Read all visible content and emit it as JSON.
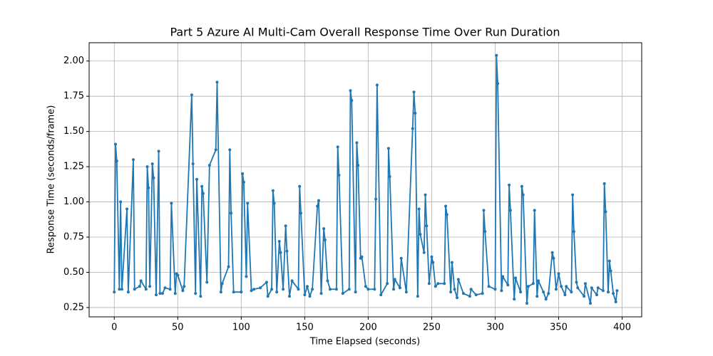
{
  "chart_data": {
    "type": "line",
    "title": "Part 5 Azure AI Multi-Cam Overall Response Time Over Run Duration",
    "xlabel": "Time Elapsed (seconds)",
    "ylabel": "Response Time (seconds/frame)",
    "color": "#1f77b4",
    "grid": true,
    "xlim": [
      -19.8,
      415.4
    ],
    "ylim": [
      0.184,
      2.13
    ],
    "xticks": [
      0,
      50,
      100,
      150,
      200,
      250,
      300,
      350,
      400
    ],
    "yticks": [
      0.25,
      {
        "value": 0.5,
        "label": "0.50"
      },
      0.75,
      {
        "value": 1.0,
        "label": "1.00"
      },
      1.25,
      {
        "value": 1.5,
        "label": "1.50"
      },
      1.75,
      {
        "value": 2.0,
        "label": "2.00"
      }
    ],
    "x": [
      0,
      1,
      2,
      4,
      5,
      6,
      10,
      11,
      15,
      16,
      20,
      21,
      25,
      26,
      27,
      28,
      30,
      31,
      33,
      35,
      36,
      38,
      40,
      44,
      45,
      48,
      49,
      50,
      54,
      55,
      61,
      62,
      64,
      65,
      68,
      69,
      70,
      73,
      75,
      80,
      81,
      84,
      85,
      90,
      91,
      92,
      94,
      100,
      101,
      102,
      104,
      105,
      108,
      110,
      115,
      120,
      121,
      124,
      125,
      126,
      128,
      130,
      131,
      133,
      135,
      136,
      138,
      140,
      145,
      146,
      147,
      150,
      152,
      154,
      156,
      160,
      161,
      163,
      165,
      166,
      168,
      170,
      175,
      176,
      177,
      180,
      185,
      186,
      187,
      190,
      191,
      192,
      194,
      195,
      198,
      200,
      205,
      206,
      207,
      210,
      215,
      216,
      217,
      220,
      221,
      225,
      226,
      230,
      235,
      236,
      237,
      239,
      240,
      241,
      244,
      245,
      246,
      248,
      250,
      251,
      253,
      255,
      260,
      261,
      262,
      265,
      266,
      268,
      270,
      271,
      275,
      280,
      281,
      285,
      290,
      291,
      292,
      295,
      300,
      301,
      302,
      305,
      306,
      310,
      311,
      312,
      315,
      316,
      320,
      321,
      322,
      325,
      326,
      330,
      331,
      333,
      334,
      338,
      340,
      342,
      345,
      346,
      348,
      350,
      352,
      355,
      356,
      360,
      361,
      362,
      364,
      365,
      370,
      371,
      375,
      376,
      380,
      381,
      385,
      386,
      387,
      389,
      390,
      391,
      393,
      395,
      396
    ],
    "values": [
      0.36,
      1.41,
      1.29,
      0.38,
      1.0,
      0.38,
      0.95,
      0.36,
      1.3,
      0.38,
      0.4,
      0.44,
      0.38,
      1.25,
      1.1,
      0.4,
      1.27,
      1.17,
      0.34,
      1.36,
      0.35,
      0.35,
      0.39,
      0.38,
      0.99,
      0.35,
      0.49,
      0.48,
      0.37,
      0.4,
      1.76,
      1.27,
      0.35,
      1.16,
      0.33,
      1.11,
      1.06,
      0.43,
      1.26,
      1.37,
      1.85,
      0.36,
      0.42,
      0.54,
      1.37,
      0.92,
      0.36,
      0.36,
      1.2,
      1.14,
      0.47,
      0.99,
      0.37,
      0.38,
      0.39,
      0.43,
      0.33,
      0.38,
      1.08,
      0.99,
      0.36,
      0.72,
      0.64,
      0.38,
      0.83,
      0.65,
      0.33,
      0.44,
      0.38,
      1.11,
      0.92,
      0.34,
      0.4,
      0.33,
      0.38,
      0.97,
      1.01,
      0.35,
      0.81,
      0.73,
      0.44,
      0.38,
      0.38,
      1.39,
      1.19,
      0.35,
      0.38,
      1.79,
      1.72,
      0.36,
      1.42,
      1.26,
      0.6,
      0.61,
      0.4,
      0.38,
      0.38,
      1.02,
      1.83,
      0.34,
      0.42,
      1.38,
      1.18,
      0.38,
      0.45,
      0.39,
      0.6,
      0.36,
      1.52,
      1.78,
      1.63,
      0.33,
      0.95,
      0.77,
      0.64,
      1.05,
      0.83,
      0.42,
      0.61,
      0.57,
      0.4,
      0.42,
      0.42,
      0.97,
      0.91,
      0.36,
      0.57,
      0.38,
      0.32,
      0.45,
      0.35,
      0.33,
      0.38,
      0.34,
      0.35,
      0.94,
      0.79,
      0.4,
      0.38,
      2.04,
      1.84,
      0.37,
      0.47,
      0.41,
      1.12,
      0.94,
      0.31,
      0.46,
      0.36,
      1.11,
      1.05,
      0.28,
      0.4,
      0.42,
      0.94,
      0.33,
      0.44,
      0.36,
      0.31,
      0.35,
      0.64,
      0.6,
      0.38,
      0.49,
      0.4,
      0.34,
      0.4,
      0.36,
      1.05,
      0.79,
      0.43,
      0.39,
      0.33,
      0.42,
      0.28,
      0.39,
      0.34,
      0.39,
      0.37,
      1.13,
      0.93,
      0.36,
      0.58,
      0.51,
      0.35,
      0.29,
      0.37
    ]
  }
}
